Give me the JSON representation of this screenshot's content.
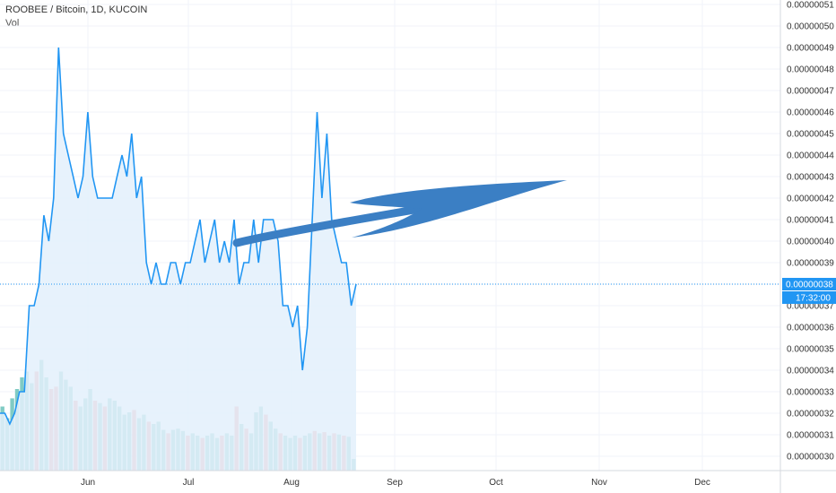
{
  "header": {
    "title": "ROOBEE / Bitcoin, 1D, KUCOIN",
    "volume_label": "Vol"
  },
  "colors": {
    "line": "#2196F3",
    "area": "#e3f0fc",
    "vol_up": "#80cbc4",
    "vol_down": "#ef9a9a",
    "grid": "#f0f3fa",
    "axis_tag": "#2196F3",
    "drawing": "#3b7fc4"
  },
  "chart_data": {
    "type": "area",
    "ylim": [
      2.95e-07,
      5.13e-08
    ],
    "y_ticks": [
      "0.00000030",
      "0.00000031",
      "0.00000032",
      "0.00000033",
      "0.00000034",
      "0.00000035",
      "0.00000036",
      "0.00000037",
      "0.00000038",
      "0.00000039",
      "0.00000040",
      "0.00000041",
      "0.00000042",
      "0.00000043",
      "0.00000044",
      "0.00000045",
      "0.00000046",
      "0.00000047",
      "0.00000048",
      "0.00000049",
      "0.00000050",
      "0.00000051"
    ],
    "x_ticks": [
      "Jun",
      "Jul",
      "Aug",
      "Sep",
      "Oct",
      "Nov",
      "Dec"
    ],
    "last_price_label": "0.00000038",
    "countdown_label": "17:32:00",
    "series": [
      {
        "values": [
          3.2e-07,
          3.2e-07,
          3.15e-07,
          3.2e-07,
          3.3e-07,
          3.3e-07,
          3.7e-07,
          3.7e-07,
          3.8e-07,
          4.12e-07,
          4e-07,
          4.2e-07,
          4.9e-07,
          4.5e-07,
          4.4e-07,
          4.3e-07,
          4.2e-07,
          4.3e-07,
          4.6e-07,
          4.3e-07,
          4.2e-07,
          4.2e-07,
          4.2e-07,
          4.2e-07,
          4.3e-07,
          4.4e-07,
          4.3e-07,
          4.5e-07,
          4.2e-07,
          4.3e-07,
          3.9e-07,
          3.8e-07,
          3.9e-07,
          3.8e-07,
          3.8e-07,
          3.9e-07,
          3.9e-07,
          3.8e-07,
          3.9e-07,
          3.9e-07,
          4e-07,
          4.1e-07,
          3.9e-07,
          4e-07,
          4.1e-07,
          3.9e-07,
          4e-07,
          3.9e-07,
          4.1e-07,
          3.8e-07,
          3.9e-07,
          3.9e-07,
          4.1e-07,
          3.9e-07,
          4.1e-07,
          4.1e-07,
          4.1e-07,
          4e-07,
          3.7e-07,
          3.7e-07,
          3.6e-07,
          3.7e-07,
          3.4e-07,
          3.6e-07,
          4.1e-07,
          4.6e-07,
          4.2e-07,
          4.5e-07,
          4.1e-07,
          4e-07,
          3.9e-07,
          3.9e-07,
          3.7e-07,
          3.8e-07
        ]
      }
    ],
    "volume": [
      {
        "v": 0.55,
        "up": true
      },
      {
        "v": 0.45,
        "up": true
      },
      {
        "v": 0.62,
        "up": true
      },
      {
        "v": 0.7,
        "up": true
      },
      {
        "v": 0.8,
        "up": true
      },
      {
        "v": 0.85,
        "up": true
      },
      {
        "v": 0.75,
        "up": true
      },
      {
        "v": 0.85,
        "up": false
      },
      {
        "v": 0.95,
        "up": true
      },
      {
        "v": 0.8,
        "up": true
      },
      {
        "v": 0.7,
        "up": false
      },
      {
        "v": 0.72,
        "up": false
      },
      {
        "v": 0.85,
        "up": true
      },
      {
        "v": 0.78,
        "up": true
      },
      {
        "v": 0.72,
        "up": true
      },
      {
        "v": 0.6,
        "up": false
      },
      {
        "v": 0.55,
        "up": true
      },
      {
        "v": 0.62,
        "up": true
      },
      {
        "v": 0.7,
        "up": true
      },
      {
        "v": 0.6,
        "up": false
      },
      {
        "v": 0.58,
        "up": true
      },
      {
        "v": 0.55,
        "up": false
      },
      {
        "v": 0.62,
        "up": true
      },
      {
        "v": 0.6,
        "up": true
      },
      {
        "v": 0.55,
        "up": true
      },
      {
        "v": 0.48,
        "up": true
      },
      {
        "v": 0.5,
        "up": true
      },
      {
        "v": 0.52,
        "up": false
      },
      {
        "v": 0.45,
        "up": true
      },
      {
        "v": 0.48,
        "up": true
      },
      {
        "v": 0.42,
        "up": false
      },
      {
        "v": 0.4,
        "up": true
      },
      {
        "v": 0.42,
        "up": true
      },
      {
        "v": 0.35,
        "up": true
      },
      {
        "v": 0.32,
        "up": false
      },
      {
        "v": 0.35,
        "up": true
      },
      {
        "v": 0.36,
        "up": true
      },
      {
        "v": 0.34,
        "up": true
      },
      {
        "v": 0.3,
        "up": false
      },
      {
        "v": 0.32,
        "up": true
      },
      {
        "v": 0.3,
        "up": true
      },
      {
        "v": 0.28,
        "up": false
      },
      {
        "v": 0.3,
        "up": true
      },
      {
        "v": 0.32,
        "up": true
      },
      {
        "v": 0.28,
        "up": true
      },
      {
        "v": 0.3,
        "up": false
      },
      {
        "v": 0.32,
        "up": true
      },
      {
        "v": 0.3,
        "up": true
      },
      {
        "v": 0.55,
        "up": false
      },
      {
        "v": 0.4,
        "up": true
      },
      {
        "v": 0.36,
        "up": false
      },
      {
        "v": 0.32,
        "up": true
      },
      {
        "v": 0.5,
        "up": true
      },
      {
        "v": 0.55,
        "up": true
      },
      {
        "v": 0.48,
        "up": false
      },
      {
        "v": 0.42,
        "up": true
      },
      {
        "v": 0.36,
        "up": true
      },
      {
        "v": 0.32,
        "up": false
      },
      {
        "v": 0.3,
        "up": true
      },
      {
        "v": 0.28,
        "up": true
      },
      {
        "v": 0.3,
        "up": true
      },
      {
        "v": 0.28,
        "up": false
      },
      {
        "v": 0.3,
        "up": true
      },
      {
        "v": 0.32,
        "up": true
      },
      {
        "v": 0.34,
        "up": false
      },
      {
        "v": 0.32,
        "up": true
      },
      {
        "v": 0.33,
        "up": false
      },
      {
        "v": 0.3,
        "up": true
      },
      {
        "v": 0.32,
        "up": false
      },
      {
        "v": 0.31,
        "up": true
      },
      {
        "v": 0.3,
        "up": false
      },
      {
        "v": 0.29,
        "up": true
      },
      {
        "v": 0.1,
        "up": true
      }
    ]
  }
}
